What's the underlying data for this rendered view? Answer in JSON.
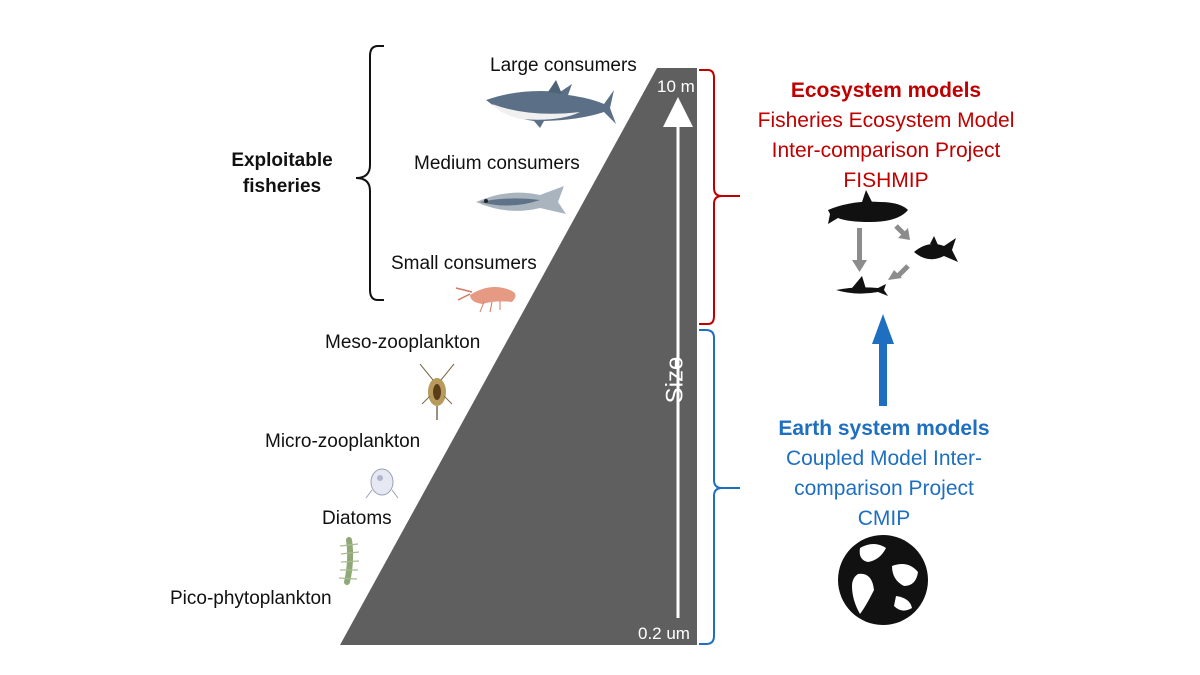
{
  "left_labels": {
    "large": "Large consumers",
    "medium": "Medium consumers",
    "small": "Small consumers",
    "meso": "Meso-zooplankton",
    "micro": "Micro-zooplankton",
    "diatoms": "Diatoms",
    "pico": "Pico-phytoplankton"
  },
  "exploitable": {
    "line1": "Exploitable",
    "line2": "fisheries"
  },
  "triangle": {
    "top_value": "10 m",
    "bottom_value": "0.2 um",
    "axis_word": "Size"
  },
  "ecosystem": {
    "heading": "Ecosystem models",
    "line1": "Fisheries Ecosystem Model",
    "line2": "Inter-comparison Project",
    "line3": "FISHMIP"
  },
  "earth": {
    "heading": "Earth system models",
    "line1": "Coupled Model Inter-",
    "line2": "comparison Project",
    "line3": "CMIP"
  },
  "colors": {
    "triangle": "#5f5f5f",
    "ecosystem": "#c00000",
    "earth": "#1f6fc0",
    "icons": "#111111",
    "food_web_arrows": "#8c8c8c"
  },
  "icons": [
    "shark-icon",
    "herring-icon",
    "krill-icon",
    "copepod-icon",
    "micro-zooplankton-icon",
    "diatom-chain-icon",
    "orca-icon",
    "tuna-icon",
    "flying-fish-icon",
    "globe-icon"
  ]
}
